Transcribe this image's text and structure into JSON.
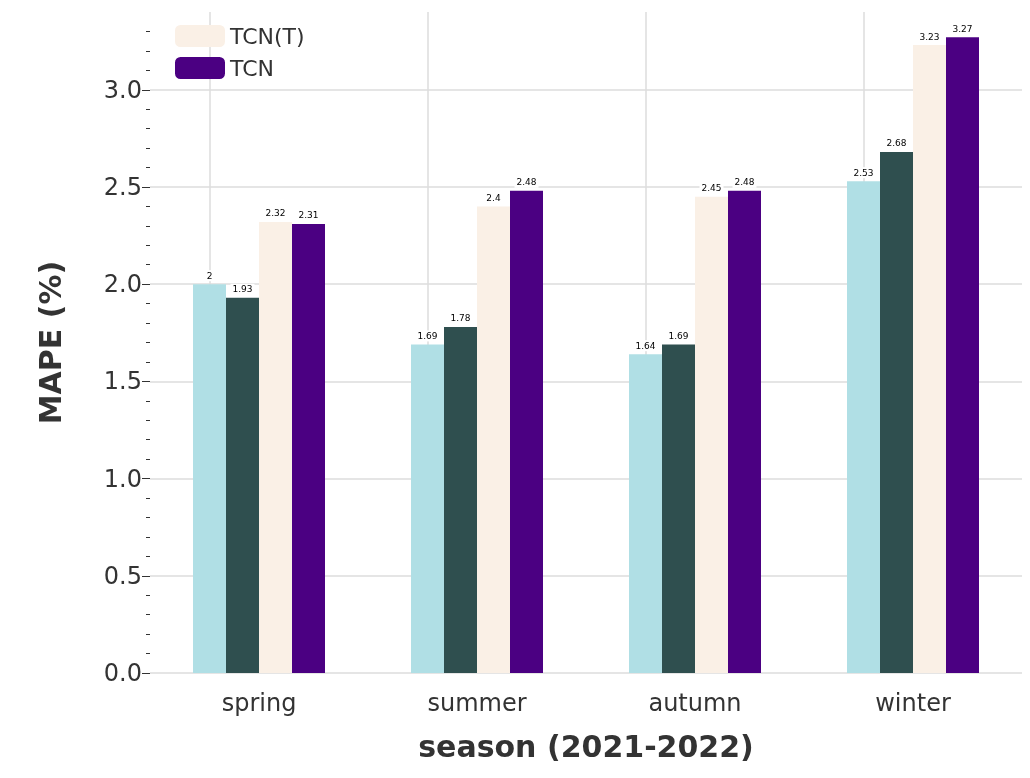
{
  "chart_data": {
    "type": "bar",
    "xlabel": "season (2021-2022)",
    "ylabel": "MAPE (%)",
    "categories": [
      "spring",
      "summer",
      "autumn",
      "winter"
    ],
    "series": [
      {
        "color": "#b0dfe5",
        "values": [
          2,
          1.69,
          1.64,
          2.53
        ]
      },
      {
        "color": "#2f4f4f",
        "values": [
          1.93,
          1.78,
          1.69,
          2.68
        ]
      },
      {
        "name": "TCN(T)",
        "color": "#faf0e6",
        "values": [
          2.32,
          2.4,
          2.45,
          3.23
        ]
      },
      {
        "name": "TCN",
        "color": "#4b0082",
        "values": [
          2.31,
          2.48,
          2.48,
          3.27
        ]
      }
    ],
    "ylim": [
      0,
      3.4
    ],
    "yticks": [
      {
        "value": 0,
        "label": "0.0"
      },
      0.5,
      {
        "value": 1,
        "label": "1.0"
      },
      1.5,
      {
        "value": 2,
        "label": "2.0"
      },
      2.5,
      {
        "value": 3,
        "label": "3.0"
      }
    ],
    "grid": true,
    "legend": "top left",
    "data_labels": true
  }
}
